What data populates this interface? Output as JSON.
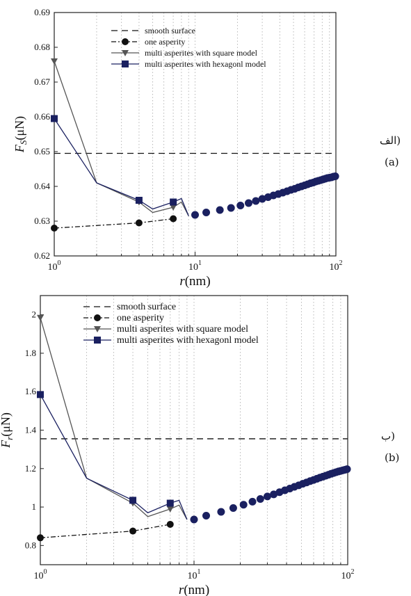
{
  "chart_data": [
    {
      "type": "line",
      "panel": "a",
      "xscale": "log",
      "xlim": [
        1,
        100
      ],
      "ylim": [
        0.62,
        0.69
      ],
      "xticks": [
        1,
        10,
        100
      ],
      "xtick_labels": [
        [
          "10",
          "0"
        ],
        [
          "10",
          "1"
        ],
        [
          "10",
          "2"
        ]
      ],
      "yticks": [
        0.62,
        0.63,
        0.64,
        0.65,
        0.66,
        0.67,
        0.68,
        0.69
      ],
      "ytick_labels": [
        "0.62",
        "0.63",
        "0.64",
        "0.65",
        "0.66",
        "0.67",
        "0.68",
        "0.69"
      ],
      "xlabel": {
        "var": "r",
        "unit": "(nm)"
      },
      "ylabel": {
        "var": "F",
        "sub": "S",
        "unit": "(μN)"
      },
      "grid": "vertical dotted",
      "legend_position": "top",
      "side_label_ar": "(الف",
      "side_label": "(a)",
      "series": [
        {
          "name": "smooth surface",
          "style": "dashed",
          "color": "#111111",
          "x": [
            1,
            100
          ],
          "y": [
            0.6495,
            0.6495
          ]
        },
        {
          "name": "one asperity",
          "style": "dashdot",
          "marker": "circle",
          "color": "#111111",
          "x": [
            1,
            4,
            7
          ],
          "y": [
            0.628,
            0.6295,
            0.6307
          ]
        },
        {
          "name": "multi asperites with square model",
          "style": "solid",
          "marker": "triangle-down",
          "color": "#555555",
          "x": [
            1,
            2,
            4,
            5,
            7,
            8,
            9
          ],
          "y": [
            0.676,
            0.641,
            0.6355,
            0.6325,
            0.634,
            0.6355,
            0.6315
          ]
        },
        {
          "name": "multi asperites with hexagonl model",
          "style": "solid",
          "marker": "square",
          "color": "#1a2060",
          "x": [
            1,
            2,
            4,
            5,
            7,
            8,
            9
          ],
          "y": [
            0.6595,
            0.641,
            0.636,
            0.6335,
            0.6355,
            0.6365,
            0.6315
          ]
        },
        {
          "name": "",
          "style": "markers",
          "marker": "circle",
          "color": "#1a2060",
          "x": [
            10,
            12,
            15,
            18,
            21,
            24,
            27,
            30,
            33,
            36,
            39,
            42,
            45,
            48,
            51,
            54,
            57,
            60,
            63,
            66,
            69,
            72,
            75,
            78,
            81,
            84,
            87,
            90,
            93,
            96,
            99
          ],
          "y": [
            0.6318,
            0.6325,
            0.6332,
            0.6338,
            0.6345,
            0.6352,
            0.6358,
            0.6364,
            0.6369,
            0.6374,
            0.6378,
            0.6382,
            0.6386,
            0.639,
            0.6393,
            0.6397,
            0.64,
            0.6403,
            0.6406,
            0.6409,
            0.6411,
            0.6414,
            0.6416,
            0.6418,
            0.642,
            0.6422,
            0.6424,
            0.6425,
            0.6426,
            0.6428,
            0.6429
          ]
        }
      ]
    },
    {
      "type": "line",
      "panel": "b",
      "xscale": "log",
      "xlim": [
        1,
        100
      ],
      "ylim": [
        0.7,
        2.1
      ],
      "xticks": [
        1,
        10,
        100
      ],
      "xtick_labels": [
        [
          "10",
          "0"
        ],
        [
          "10",
          "1"
        ],
        [
          "10",
          "2"
        ]
      ],
      "yticks": [
        0.8,
        1,
        1.2,
        1.4,
        1.6,
        1.8,
        2
      ],
      "ytick_labels": [
        "0.8",
        "1",
        "1.2",
        "1.4",
        "1.6",
        "1.8",
        "2"
      ],
      "xlabel": {
        "var": "r",
        "unit": "(nm)"
      },
      "ylabel": {
        "var": "F",
        "sub": "r",
        "unit": "(μN)"
      },
      "grid": "vertical dotted",
      "legend_position": "top",
      "side_label_ar": "(ب",
      "side_label": "(b)",
      "series": [
        {
          "name": "smooth surface",
          "style": "dashed",
          "color": "#111111",
          "x": [
            1,
            100
          ],
          "y": [
            1.355,
            1.355
          ]
        },
        {
          "name": "one asperity",
          "style": "dashdot",
          "marker": "circle",
          "color": "#111111",
          "x": [
            1,
            4,
            7
          ],
          "y": [
            0.84,
            0.875,
            0.91
          ]
        },
        {
          "name": "multi asperites with square model",
          "style": "solid",
          "marker": "triangle-down",
          "color": "#555555",
          "x": [
            1,
            2,
            4,
            5,
            7,
            8,
            9
          ],
          "y": [
            1.985,
            1.15,
            1.02,
            0.95,
            0.99,
            1.01,
            0.935
          ]
        },
        {
          "name": "multi asperites with hexagonl model",
          "style": "solid",
          "marker": "square",
          "color": "#1a2060",
          "x": [
            1,
            2,
            4,
            5,
            7,
            8,
            9
          ],
          "y": [
            1.585,
            1.15,
            1.035,
            0.97,
            1.02,
            1.035,
            0.935
          ]
        },
        {
          "name": "",
          "style": "markers",
          "marker": "circle",
          "color": "#1a2060",
          "x": [
            10,
            12,
            15,
            18,
            21,
            24,
            27,
            30,
            33,
            36,
            39,
            42,
            45,
            48,
            51,
            54,
            57,
            60,
            63,
            66,
            69,
            72,
            75,
            78,
            81,
            84,
            87,
            90,
            93,
            96,
            99
          ],
          "y": [
            0.935,
            0.955,
            0.975,
            0.995,
            1.012,
            1.028,
            1.042,
            1.055,
            1.066,
            1.077,
            1.087,
            1.096,
            1.105,
            1.113,
            1.121,
            1.128,
            1.135,
            1.141,
            1.147,
            1.153,
            1.158,
            1.163,
            1.168,
            1.173,
            1.177,
            1.181,
            1.185,
            1.188,
            1.191,
            1.194,
            1.197
          ]
        }
      ]
    }
  ]
}
